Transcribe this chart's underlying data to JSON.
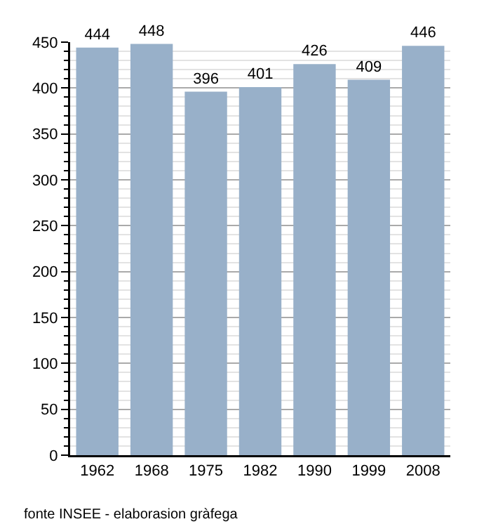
{
  "chart_data": {
    "type": "bar",
    "categories": [
      "1962",
      "1968",
      "1975",
      "1982",
      "1990",
      "1999",
      "2008"
    ],
    "values": [
      444,
      448,
      396,
      401,
      426,
      409,
      446
    ],
    "color": "#98b0c9",
    "ylim": [
      0,
      450
    ],
    "yticks": [
      0,
      50,
      100,
      150,
      200,
      250,
      300,
      350,
      400,
      450
    ],
    "grid": "y",
    "data_labels": true,
    "annotations": [
      "fonte INSEE - elaborasion gràfega"
    ]
  }
}
